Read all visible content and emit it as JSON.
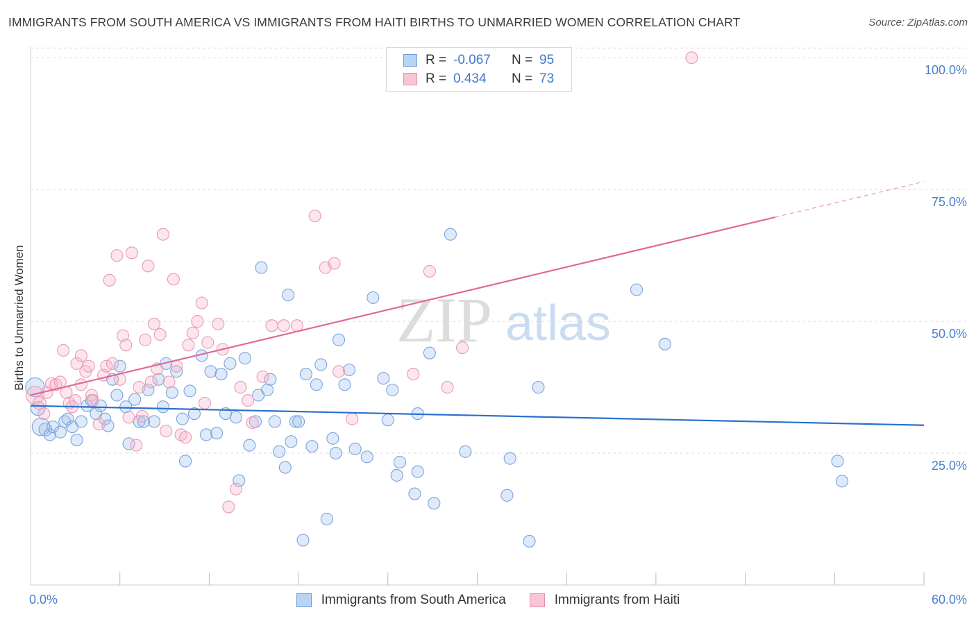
{
  "title": "IMMIGRANTS FROM SOUTH AMERICA VS IMMIGRANTS FROM HAITI BIRTHS TO UNMARRIED WOMEN CORRELATION CHART",
  "source": "Source: ZipAtlas.com",
  "watermark": {
    "zip": "ZIP",
    "atlas": "atlas"
  },
  "legend": {
    "rows": [
      {
        "r_label": "R =",
        "r_value": "-0.067",
        "n_label": "N =",
        "n_value": "95",
        "fill": "#b9d3f3",
        "stroke": "#6f9ad9"
      },
      {
        "r_label": "R =",
        "r_value": "0.434",
        "n_label": "N =",
        "n_value": "73",
        "fill": "#f9c5d6",
        "stroke": "#e590ad"
      }
    ]
  },
  "colors": {
    "blue_fill": "rgba(160,195,238,0.35)",
    "blue_stroke": "#7aa3dc",
    "blue_line": "#2a6fcf",
    "pink_fill": "rgba(246,180,200,0.35)",
    "pink_stroke": "#e79ab5",
    "pink_line": "#e06a96",
    "tick": "#4a7fd0",
    "grid": "#dddddd"
  },
  "chart_data": {
    "type": "scatter",
    "ylabel": "Births to Unmarried Women",
    "xlim": [
      0,
      60
    ],
    "ylim": [
      0,
      102
    ],
    "y_ticks": [
      {
        "value": 25,
        "label": "25.0%"
      },
      {
        "value": 50,
        "label": "50.0%"
      },
      {
        "value": 75,
        "label": "75.0%"
      },
      {
        "value": 100,
        "label": "100.0%"
      }
    ],
    "x_tick_labels": {
      "min": "0.0%",
      "max": "60.0%"
    },
    "x_minor_ticks": [
      6,
      12,
      18,
      24,
      30,
      36,
      42,
      48,
      54,
      60
    ],
    "series": [
      {
        "name": "Immigrants from South America",
        "color": "blue",
        "trend": {
          "x0": 0,
          "y0": 34.0,
          "x1": 60,
          "y1": 30.3
        },
        "points": [
          [
            0.3,
            37.5,
            1.6
          ],
          [
            0.5,
            33.5,
            1.2
          ],
          [
            0.7,
            30.0,
            1.5
          ],
          [
            1.0,
            29.5,
            1.1
          ],
          [
            1.3,
            28.5,
            1.0
          ],
          [
            1.5,
            30.0,
            1.0
          ],
          [
            2.0,
            29.0,
            1.0
          ],
          [
            2.3,
            31.0,
            1.0
          ],
          [
            2.5,
            31.5,
            1.0
          ],
          [
            2.8,
            30.0,
            1.0
          ],
          [
            3.1,
            27.5,
            1.0
          ],
          [
            3.4,
            31.0,
            1.0
          ],
          [
            3.8,
            34.0,
            1.0
          ],
          [
            4.1,
            35.0,
            1.0
          ],
          [
            4.4,
            32.5,
            1.0
          ],
          [
            4.7,
            34.0,
            1.0
          ],
          [
            5.0,
            31.5,
            1.0
          ],
          [
            5.2,
            30.2,
            1.0
          ],
          [
            5.5,
            39.0,
            1.0
          ],
          [
            5.8,
            36.0,
            1.0
          ],
          [
            6.0,
            41.5,
            1.0
          ],
          [
            6.4,
            33.8,
            1.0
          ],
          [
            6.6,
            26.8,
            1.0
          ],
          [
            7.0,
            35.2,
            1.0
          ],
          [
            7.3,
            31.0,
            1.0
          ],
          [
            7.6,
            31.0,
            1.0
          ],
          [
            7.9,
            37.0,
            1.0
          ],
          [
            8.3,
            31.0,
            1.0
          ],
          [
            8.6,
            39.0,
            1.0
          ],
          [
            8.9,
            33.8,
            1.0
          ],
          [
            9.1,
            42.0,
            1.0
          ],
          [
            9.5,
            36.5,
            1.0
          ],
          [
            9.8,
            40.5,
            1.0
          ],
          [
            10.2,
            31.5,
            1.0
          ],
          [
            10.4,
            23.5,
            1.0
          ],
          [
            10.7,
            36.8,
            1.0
          ],
          [
            11.0,
            32.5,
            1.0
          ],
          [
            11.5,
            43.5,
            1.0
          ],
          [
            11.8,
            28.5,
            1.0
          ],
          [
            12.1,
            40.5,
            1.0
          ],
          [
            12.5,
            28.8,
            1.0
          ],
          [
            12.8,
            40.0,
            1.0
          ],
          [
            13.1,
            32.5,
            1.0
          ],
          [
            13.4,
            42.0,
            1.0
          ],
          [
            13.8,
            31.8,
            1.0
          ],
          [
            14.0,
            19.8,
            1.0
          ],
          [
            14.4,
            43.0,
            1.0
          ],
          [
            14.7,
            26.5,
            1.0
          ],
          [
            15.1,
            31.0,
            1.0
          ],
          [
            15.3,
            36.0,
            1.0
          ],
          [
            15.5,
            60.2,
            1.0
          ],
          [
            15.9,
            37.0,
            1.0
          ],
          [
            16.1,
            39.0,
            1.0
          ],
          [
            16.4,
            31.0,
            1.0
          ],
          [
            16.7,
            25.3,
            1.0
          ],
          [
            17.1,
            22.3,
            1.0
          ],
          [
            17.3,
            55.0,
            1.0
          ],
          [
            17.5,
            27.2,
            1.0
          ],
          [
            17.8,
            31.0,
            1.0
          ],
          [
            18.0,
            31.0,
            1.0
          ],
          [
            18.3,
            8.5,
            1.0
          ],
          [
            18.5,
            40.0,
            1.0
          ],
          [
            18.9,
            26.3,
            1.0
          ],
          [
            19.2,
            38.0,
            1.0
          ],
          [
            19.5,
            41.8,
            1.0
          ],
          [
            19.9,
            12.5,
            1.0
          ],
          [
            20.3,
            27.8,
            1.0
          ],
          [
            20.5,
            25.0,
            1.0
          ],
          [
            20.7,
            46.5,
            1.0
          ],
          [
            21.1,
            38.0,
            1.0
          ],
          [
            21.4,
            40.8,
            1.0
          ],
          [
            21.8,
            25.8,
            1.0
          ],
          [
            22.6,
            24.3,
            1.0
          ],
          [
            23.0,
            54.5,
            1.0
          ],
          [
            23.7,
            39.2,
            1.0
          ],
          [
            24.0,
            31.3,
            1.0
          ],
          [
            24.3,
            37.0,
            1.0
          ],
          [
            24.6,
            20.8,
            1.0
          ],
          [
            24.8,
            23.3,
            1.0
          ],
          [
            25.8,
            17.3,
            1.0
          ],
          [
            26.0,
            21.5,
            1.0
          ],
          [
            26.0,
            32.5,
            1.0
          ],
          [
            26.8,
            44.0,
            1.0
          ],
          [
            27.1,
            15.5,
            1.0
          ],
          [
            28.2,
            66.5,
            1.0
          ],
          [
            29.2,
            25.3,
            1.0
          ],
          [
            32.0,
            17.0,
            1.0
          ],
          [
            32.2,
            24.0,
            1.0
          ],
          [
            33.5,
            8.3,
            1.0
          ],
          [
            34.1,
            37.5,
            1.0
          ],
          [
            40.7,
            56.0,
            1.0
          ],
          [
            42.6,
            45.7,
            1.0
          ],
          [
            54.2,
            23.5,
            1.0
          ],
          [
            54.5,
            19.7,
            1.0
          ]
        ]
      },
      {
        "name": "Immigrants from Haiti",
        "color": "pink",
        "trend": {
          "x0": 0,
          "y0": 36.0,
          "x1": 60,
          "y1": 76.5,
          "solid_until_x": 50
        },
        "points": [
          [
            0.3,
            36.0,
            1.5
          ],
          [
            0.6,
            34.5,
            1.1
          ],
          [
            0.9,
            32.5,
            1.0
          ],
          [
            1.1,
            36.5,
            1.0
          ],
          [
            1.4,
            38.2,
            1.0
          ],
          [
            1.7,
            38.0,
            1.0
          ],
          [
            2.0,
            38.5,
            1.0
          ],
          [
            2.2,
            44.5,
            1.0
          ],
          [
            2.4,
            36.5,
            1.0
          ],
          [
            2.6,
            34.5,
            1.0
          ],
          [
            2.8,
            33.8,
            1.0
          ],
          [
            3.0,
            35.0,
            1.0
          ],
          [
            3.1,
            42.0,
            1.0
          ],
          [
            3.4,
            43.5,
            1.0
          ],
          [
            3.4,
            38.0,
            1.0
          ],
          [
            3.7,
            40.5,
            1.0
          ],
          [
            3.9,
            41.5,
            1.0
          ],
          [
            4.1,
            36.0,
            1.0
          ],
          [
            4.2,
            35.0,
            1.0
          ],
          [
            4.6,
            30.5,
            1.0
          ],
          [
            4.9,
            39.8,
            1.0
          ],
          [
            5.1,
            41.5,
            1.0
          ],
          [
            5.3,
            57.8,
            1.0
          ],
          [
            5.5,
            42.0,
            1.0
          ],
          [
            5.8,
            62.5,
            1.0
          ],
          [
            6.0,
            39.0,
            1.0
          ],
          [
            6.2,
            47.3,
            1.0
          ],
          [
            6.4,
            45.5,
            1.0
          ],
          [
            6.6,
            31.8,
            1.0
          ],
          [
            6.8,
            63.0,
            1.0
          ],
          [
            7.1,
            26.5,
            1.0
          ],
          [
            7.3,
            37.5,
            1.0
          ],
          [
            7.5,
            32.0,
            1.0
          ],
          [
            7.7,
            46.5,
            1.0
          ],
          [
            7.9,
            60.5,
            1.0
          ],
          [
            8.1,
            38.5,
            1.0
          ],
          [
            8.3,
            49.5,
            1.0
          ],
          [
            8.5,
            41.0,
            1.0
          ],
          [
            8.7,
            47.5,
            1.0
          ],
          [
            8.9,
            66.5,
            1.0
          ],
          [
            9.1,
            29.2,
            1.0
          ],
          [
            9.3,
            38.5,
            1.0
          ],
          [
            9.6,
            58.0,
            1.0
          ],
          [
            9.8,
            41.5,
            1.0
          ],
          [
            10.1,
            28.5,
            1.0
          ],
          [
            10.4,
            28.0,
            1.0
          ],
          [
            10.6,
            45.5,
            1.0
          ],
          [
            10.9,
            47.8,
            1.0
          ],
          [
            11.2,
            50.0,
            1.0
          ],
          [
            11.5,
            53.5,
            1.0
          ],
          [
            11.7,
            34.5,
            1.0
          ],
          [
            11.9,
            46.0,
            1.0
          ],
          [
            12.6,
            49.5,
            1.0
          ],
          [
            12.9,
            44.7,
            1.0
          ],
          [
            13.3,
            14.8,
            1.0
          ],
          [
            13.8,
            18.2,
            1.0
          ],
          [
            14.1,
            37.5,
            1.0
          ],
          [
            14.6,
            35.0,
            1.0
          ],
          [
            14.9,
            30.8,
            1.0
          ],
          [
            15.6,
            39.5,
            1.0
          ],
          [
            16.2,
            49.2,
            1.0
          ],
          [
            17.0,
            49.2,
            1.0
          ],
          [
            17.9,
            49.2,
            1.0
          ],
          [
            19.1,
            70.0,
            1.0
          ],
          [
            19.8,
            60.2,
            1.0
          ],
          [
            20.4,
            61.0,
            1.0
          ],
          [
            20.7,
            40.5,
            1.0
          ],
          [
            21.6,
            31.5,
            1.0
          ],
          [
            25.7,
            40.0,
            1.0
          ],
          [
            26.8,
            59.5,
            1.0
          ],
          [
            28.0,
            37.5,
            1.0
          ],
          [
            29.0,
            45.0,
            1.0
          ],
          [
            44.4,
            100.0,
            1.0
          ]
        ]
      }
    ]
  },
  "bottom_legend": [
    {
      "label": "Immigrants from South America",
      "fill": "#b9d3f3",
      "stroke": "#6f9ad9"
    },
    {
      "label": "Immigrants from Haiti",
      "fill": "#f9c5d6",
      "stroke": "#e590ad"
    }
  ]
}
